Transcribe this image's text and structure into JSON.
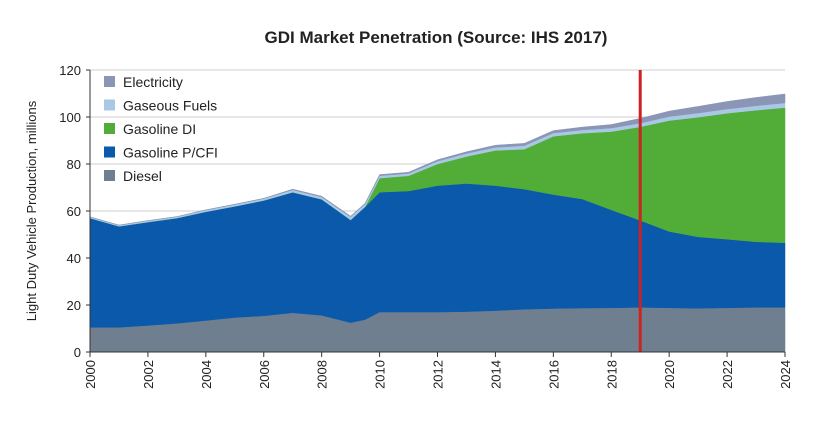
{
  "chart_data": {
    "type": "area",
    "stacked": true,
    "title": "GDI Market Penetration (Source: IHS 2017)",
    "xlabel": "",
    "ylabel": "Light Duty Vehicle Production, millions",
    "xlim": [
      2000,
      2024
    ],
    "ylim": [
      0,
      120
    ],
    "yticks": [
      0,
      20,
      40,
      60,
      80,
      100,
      120
    ],
    "xticks": [
      2000,
      2002,
      2004,
      2006,
      2008,
      2010,
      2012,
      2014,
      2016,
      2018,
      2020,
      2022,
      2024
    ],
    "grid": true,
    "legend_position": "top-left",
    "marker_line": {
      "x": 2019,
      "color": "#cc2222"
    },
    "x": [
      2000,
      2001,
      2002,
      2003,
      2004,
      2005,
      2006,
      2007,
      2008,
      2009,
      2009.5,
      2010,
      2011,
      2012,
      2013,
      2014,
      2015,
      2016,
      2017,
      2018,
      2019,
      2020,
      2021,
      2022,
      2023,
      2024
    ],
    "series": [
      {
        "name": "Diesel",
        "color": "#6f7f8f",
        "values": [
          10.5,
          10.5,
          11.3,
          12.2,
          13.4,
          14.7,
          15.4,
          16.7,
          15.6,
          12.5,
          13.8,
          17.0,
          17.0,
          17.0,
          17.2,
          17.6,
          18.2,
          18.5,
          18.7,
          18.8,
          19.0,
          18.8,
          18.6,
          18.8,
          19.0,
          19.0
        ]
      },
      {
        "name": "Gasoline P/CFI",
        "color": "#0a59ab",
        "values": [
          46.5,
          43.0,
          44.0,
          44.8,
          46.3,
          47.3,
          49.1,
          51.3,
          49.4,
          43.7,
          48.0,
          51.0,
          51.5,
          53.8,
          54.5,
          53.2,
          51.1,
          48.5,
          46.4,
          41.7,
          37.0,
          32.5,
          30.4,
          29.2,
          27.9,
          27.5
        ]
      },
      {
        "name": "Gasoline DI",
        "color": "#52ad38",
        "values": [
          0,
          0,
          0,
          0,
          0,
          0,
          0,
          0,
          0,
          0,
          0,
          6.0,
          6.5,
          9.2,
          11.5,
          15.0,
          17.0,
          24.8,
          28.0,
          33.3,
          39.8,
          47.2,
          50.9,
          53.6,
          56.0,
          57.5
        ]
      },
      {
        "name": "Gaseous Fuels",
        "color": "#a9c8e5",
        "values": [
          0.5,
          0.5,
          0.6,
          0.6,
          0.7,
          0.8,
          0.8,
          1.0,
          1.0,
          1.3,
          1.2,
          1.0,
          1.0,
          1.2,
          1.3,
          1.3,
          1.5,
          1.4,
          1.4,
          1.5,
          1.6,
          1.7,
          1.8,
          1.8,
          1.9,
          2.0
        ]
      },
      {
        "name": "Electricity",
        "color": "#8b95b5",
        "values": [
          0,
          0,
          0,
          0,
          0.1,
          0.1,
          0.1,
          0.3,
          0.3,
          0.3,
          0.3,
          0.5,
          0.5,
          0.6,
          0.7,
          0.9,
          1.0,
          1.0,
          1.2,
          1.5,
          2.0,
          2.3,
          2.8,
          3.2,
          3.5,
          3.8
        ]
      }
    ]
  }
}
